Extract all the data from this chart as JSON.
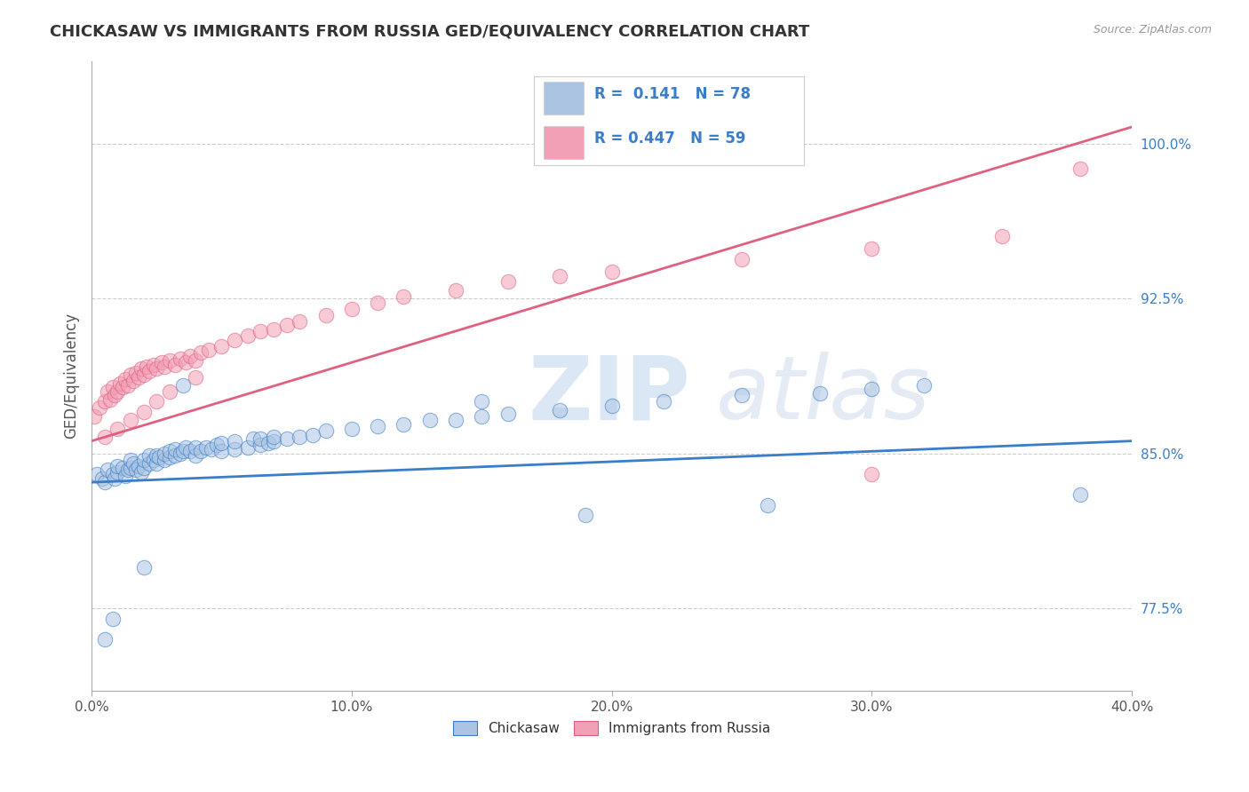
{
  "title": "CHICKASAW VS IMMIGRANTS FROM RUSSIA GED/EQUIVALENCY CORRELATION CHART",
  "source": "Source: ZipAtlas.com",
  "ylabel": "GED/Equivalency",
  "xlim": [
    0.0,
    0.4
  ],
  "ylim": [
    0.735,
    1.04
  ],
  "xtick_labels": [
    "0.0%",
    "10.0%",
    "20.0%",
    "30.0%",
    "40.0%"
  ],
  "xtick_vals": [
    0.0,
    0.1,
    0.2,
    0.3,
    0.4
  ],
  "ytick_labels": [
    "77.5%",
    "85.0%",
    "92.5%",
    "100.0%"
  ],
  "ytick_vals": [
    0.775,
    0.85,
    0.925,
    1.0
  ],
  "legend_labels": [
    "Chickasaw",
    "Immigrants from Russia"
  ],
  "blue_R": "0.141",
  "blue_N": "78",
  "pink_R": "0.447",
  "pink_N": "59",
  "blue_color": "#aac4e2",
  "pink_color": "#f2a0b5",
  "blue_line_color": "#3a7dc9",
  "pink_line_color": "#e06080",
  "background_color": "#ffffff",
  "blue_scatter_x": [
    0.002,
    0.004,
    0.005,
    0.006,
    0.008,
    0.009,
    0.01,
    0.01,
    0.012,
    0.013,
    0.014,
    0.015,
    0.015,
    0.016,
    0.017,
    0.018,
    0.019,
    0.02,
    0.02,
    0.022,
    0.022,
    0.024,
    0.025,
    0.025,
    0.026,
    0.028,
    0.028,
    0.03,
    0.03,
    0.032,
    0.032,
    0.034,
    0.035,
    0.036,
    0.038,
    0.04,
    0.04,
    0.042,
    0.044,
    0.046,
    0.048,
    0.05,
    0.05,
    0.055,
    0.055,
    0.06,
    0.062,
    0.065,
    0.065,
    0.068,
    0.07,
    0.07,
    0.075,
    0.08,
    0.085,
    0.09,
    0.1,
    0.11,
    0.12,
    0.13,
    0.14,
    0.15,
    0.16,
    0.18,
    0.2,
    0.22,
    0.25,
    0.28,
    0.3,
    0.32,
    0.035,
    0.02,
    0.008,
    0.005,
    0.19,
    0.26,
    0.38,
    0.15
  ],
  "blue_scatter_y": [
    0.84,
    0.838,
    0.836,
    0.842,
    0.84,
    0.838,
    0.841,
    0.844,
    0.843,
    0.839,
    0.842,
    0.843,
    0.847,
    0.845,
    0.842,
    0.844,
    0.841,
    0.843,
    0.847,
    0.845,
    0.849,
    0.847,
    0.845,
    0.849,
    0.848,
    0.847,
    0.85,
    0.848,
    0.851,
    0.849,
    0.852,
    0.85,
    0.851,
    0.853,
    0.851,
    0.849,
    0.853,
    0.851,
    0.853,
    0.852,
    0.854,
    0.851,
    0.855,
    0.852,
    0.856,
    0.853,
    0.857,
    0.854,
    0.857,
    0.855,
    0.856,
    0.858,
    0.857,
    0.858,
    0.859,
    0.861,
    0.862,
    0.863,
    0.864,
    0.866,
    0.866,
    0.868,
    0.869,
    0.871,
    0.873,
    0.875,
    0.878,
    0.879,
    0.881,
    0.883,
    0.883,
    0.795,
    0.77,
    0.76,
    0.82,
    0.825,
    0.83,
    0.875
  ],
  "pink_scatter_x": [
    0.001,
    0.003,
    0.005,
    0.006,
    0.007,
    0.008,
    0.009,
    0.01,
    0.011,
    0.012,
    0.013,
    0.014,
    0.015,
    0.016,
    0.017,
    0.018,
    0.019,
    0.02,
    0.021,
    0.022,
    0.024,
    0.025,
    0.027,
    0.028,
    0.03,
    0.032,
    0.034,
    0.036,
    0.038,
    0.04,
    0.042,
    0.045,
    0.05,
    0.055,
    0.06,
    0.065,
    0.07,
    0.075,
    0.08,
    0.09,
    0.1,
    0.11,
    0.12,
    0.14,
    0.16,
    0.18,
    0.2,
    0.25,
    0.3,
    0.35,
    0.005,
    0.01,
    0.015,
    0.02,
    0.025,
    0.03,
    0.04,
    0.38,
    0.3
  ],
  "pink_scatter_y": [
    0.868,
    0.872,
    0.875,
    0.88,
    0.876,
    0.882,
    0.878,
    0.88,
    0.884,
    0.882,
    0.886,
    0.883,
    0.888,
    0.885,
    0.889,
    0.887,
    0.891,
    0.888,
    0.892,
    0.89,
    0.893,
    0.891,
    0.894,
    0.892,
    0.895,
    0.893,
    0.896,
    0.894,
    0.897,
    0.895,
    0.899,
    0.9,
    0.902,
    0.905,
    0.907,
    0.909,
    0.91,
    0.912,
    0.914,
    0.917,
    0.92,
    0.923,
    0.926,
    0.929,
    0.933,
    0.936,
    0.938,
    0.944,
    0.949,
    0.955,
    0.858,
    0.862,
    0.866,
    0.87,
    0.875,
    0.88,
    0.887,
    0.988,
    0.84
  ],
  "blue_trend_x": [
    0.0,
    0.4
  ],
  "blue_trend_y": [
    0.836,
    0.856
  ],
  "pink_trend_x": [
    0.0,
    0.4
  ],
  "pink_trend_y": [
    0.856,
    1.008
  ]
}
